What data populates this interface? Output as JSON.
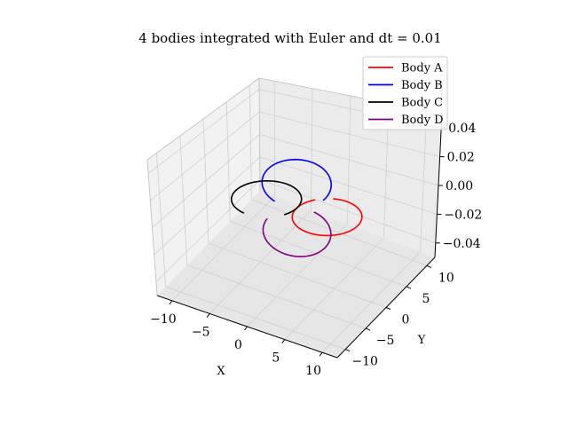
{
  "chart_data": {
    "type": "line",
    "projection": "3d",
    "title": "4 bodies integrated with Euler and dt = 0.01",
    "xlabel": "X",
    "ylabel": "Y",
    "zlabel": "",
    "xlim": [
      -12,
      12
    ],
    "ylim": [
      -12,
      12
    ],
    "zlim": [
      -0.05,
      0.05
    ],
    "x_ticks": [
      "−10",
      "−5",
      "0",
      "5",
      "10"
    ],
    "y_ticks": [
      "−10",
      "−5",
      "0",
      "5",
      "10"
    ],
    "z_ticks": [
      "−0.04",
      "−0.02",
      "0.00",
      "0.02",
      "0.04"
    ],
    "grid": true,
    "legend_position": "upper right",
    "series": [
      {
        "name": "Body A",
        "color": "#ff0000",
        "description": "arc in z=0 plane around (x≈4, y≈0), radius ≈4",
        "center": [
          4,
          0,
          0
        ],
        "plane": "xy",
        "radius": 4,
        "start_deg": 140,
        "end_deg": 470
      },
      {
        "name": "Body B",
        "color": "#0000ff",
        "description": "arc in vertical plane near origin",
        "center": [
          0,
          0,
          0.018
        ],
        "plane": "vertical",
        "radius": 0.018,
        "start_deg": -40,
        "end_deg": 230
      },
      {
        "name": "Body C",
        "color": "#000000",
        "description": "arc in z=0 plane around (x≈-4, y≈0), radius ≈4",
        "center": [
          -4,
          0,
          0
        ],
        "plane": "xy",
        "radius": 4,
        "start_deg": 330,
        "end_deg": 620
      },
      {
        "name": "Body D",
        "color": "#800080",
        "description": "arc in vertical plane near origin, below",
        "center": [
          0,
          0,
          -0.018
        ],
        "plane": "vertical",
        "radius": 0.018,
        "start_deg": 150,
        "end_deg": 420
      }
    ]
  }
}
